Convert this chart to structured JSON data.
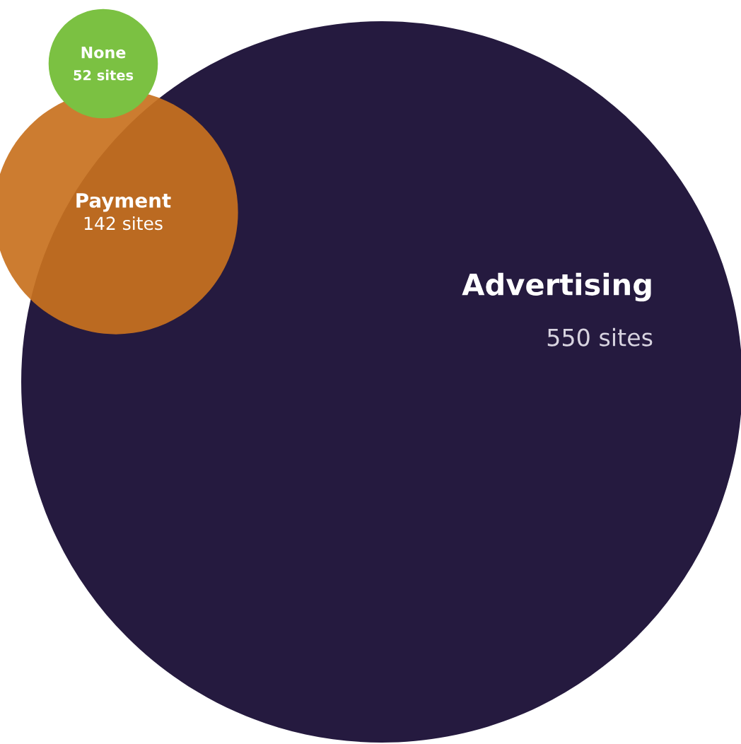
{
  "chart_data": {
    "type": "other",
    "categories": [
      "None",
      "Payment",
      "Advertising"
    ],
    "values": [
      52,
      142,
      550
    ],
    "value_labels": [
      "52 sites",
      "142 sites",
      "550 sites"
    ],
    "colors": [
      "#7bc142",
      "#c8711e",
      "#251a3f"
    ]
  }
}
